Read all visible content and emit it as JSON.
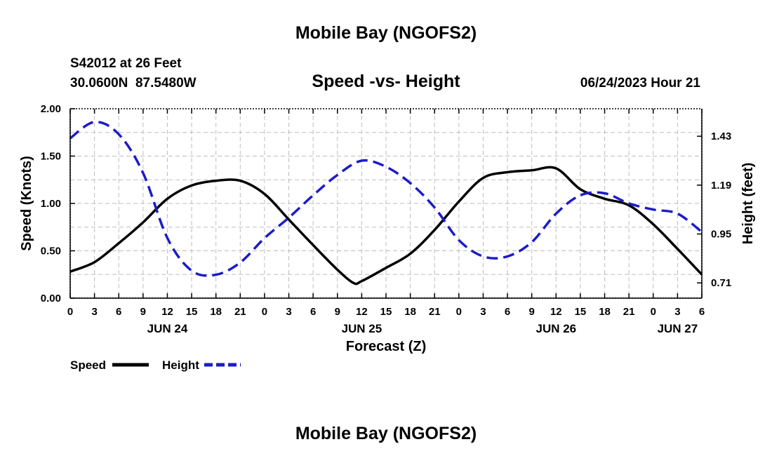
{
  "header": {
    "title": "Mobile Bay (NGOFS2)",
    "station": "S42012 at 26 Feet",
    "coords": "30.0600N  87.5480W",
    "subtitle": "Speed -vs- Height",
    "datetime": "06/24/2023 Hour 21"
  },
  "footer": {
    "title": "Mobile Bay (NGOFS2)"
  },
  "chart_data": {
    "type": "line",
    "xlabel": "Forecast (Z)",
    "ylabel": "Speed (Knots)",
    "y2label": "Height (feet)",
    "x_unit": "hours since JUN 24 00Z",
    "xlim": [
      0,
      78
    ],
    "ylim": [
      0,
      2.0
    ],
    "y2lim": [
      0.635,
      1.565
    ],
    "x_tick_values": [
      0,
      3,
      6,
      9,
      12,
      15,
      18,
      21,
      24,
      27,
      30,
      33,
      36,
      39,
      42,
      45,
      48,
      51,
      54,
      57,
      60,
      63,
      66,
      69,
      72,
      75,
      78
    ],
    "x_tick_labels": [
      "0",
      "3",
      "6",
      "9",
      "12",
      "15",
      "18",
      "21",
      "0",
      "3",
      "6",
      "9",
      "12",
      "15",
      "18",
      "21",
      "0",
      "3",
      "6",
      "9",
      "12",
      "15",
      "18",
      "21",
      "0",
      "3",
      "6"
    ],
    "date_labels": [
      {
        "label": "JUN 24",
        "x": 12
      },
      {
        "label": "JUN 25",
        "x": 36
      },
      {
        "label": "JUN 26",
        "x": 60
      },
      {
        "label": "JUN 27",
        "x": 75
      }
    ],
    "y_ticks": [
      0,
      0.5,
      1.0,
      1.5,
      2.0
    ],
    "y_tick_labels": [
      "0.00",
      "0.50",
      "1.00",
      "1.50",
      "2.00"
    ],
    "y2_ticks": [
      0.71,
      0.95,
      1.19,
      1.43
    ],
    "y2_tick_labels": [
      "0.71",
      "0.95",
      "1.19",
      "1.43"
    ],
    "series": [
      {
        "name": "Speed",
        "axis": "left",
        "color": "#000000",
        "style": "solid",
        "x": [
          0,
          3,
          6,
          9,
          12,
          15,
          18,
          21,
          24,
          27,
          30,
          33,
          35,
          36,
          39,
          42,
          45,
          48,
          51,
          54,
          57,
          60,
          63,
          66,
          69,
          72,
          75,
          78
        ],
        "y": [
          0.28,
          0.38,
          0.58,
          0.8,
          1.05,
          1.19,
          1.24,
          1.24,
          1.1,
          0.83,
          0.56,
          0.3,
          0.16,
          0.18,
          0.32,
          0.47,
          0.72,
          1.02,
          1.27,
          1.33,
          1.35,
          1.37,
          1.15,
          1.05,
          0.98,
          0.78,
          0.52,
          0.25
        ]
      },
      {
        "name": "Height",
        "axis": "right",
        "color": "#1c1cc8",
        "style": "dashed",
        "x": [
          0,
          3,
          6,
          9,
          12,
          15,
          18,
          21,
          24,
          27,
          30,
          33,
          36,
          39,
          42,
          45,
          48,
          51,
          54,
          57,
          60,
          63,
          66,
          69,
          72,
          75,
          78
        ],
        "y": [
          1.42,
          1.5,
          1.44,
          1.25,
          0.93,
          0.77,
          0.75,
          0.81,
          0.93,
          1.03,
          1.14,
          1.24,
          1.31,
          1.28,
          1.2,
          1.08,
          0.92,
          0.84,
          0.84,
          0.91,
          1.05,
          1.14,
          1.15,
          1.1,
          1.07,
          1.05,
          0.96
        ]
      }
    ]
  }
}
